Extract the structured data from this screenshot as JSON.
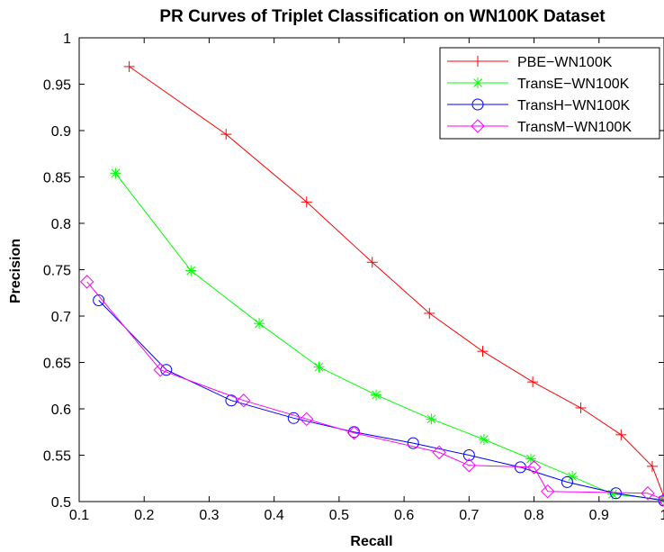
{
  "chart_data": {
    "type": "line",
    "title": "PR Curves of Triplet Classification on WN100K Dataset",
    "xlabel": "Recall",
    "ylabel": "Precision",
    "xlim": [
      0.1,
      1.0
    ],
    "ylim": [
      0.5,
      1.0
    ],
    "xticks": [
      "0.1",
      "0.2",
      "0.3",
      "0.4",
      "0.5",
      "0.6",
      "0.7",
      "0.8",
      "0.9",
      "1"
    ],
    "yticks": [
      "0.5",
      "0.55",
      "0.6",
      "0.65",
      "0.7",
      "0.75",
      "0.8",
      "0.85",
      "0.9",
      "0.95",
      "1"
    ],
    "grid": false,
    "legend_position": "top-right",
    "series": [
      {
        "name": "PBE−WN100K",
        "color": "#ff0000",
        "marker": "plus",
        "x": [
          0.177,
          0.326,
          0.45,
          0.551,
          0.639,
          0.721,
          0.798,
          0.872,
          0.934,
          0.982,
          1.0
        ],
        "y": [
          0.969,
          0.896,
          0.823,
          0.758,
          0.703,
          0.662,
          0.629,
          0.601,
          0.572,
          0.538,
          0.505
        ]
      },
      {
        "name": "TransE−WN100K",
        "color": "#00ff00",
        "marker": "asterisk",
        "x": [
          0.156,
          0.272,
          0.377,
          0.469,
          0.557,
          0.642,
          0.723,
          0.795,
          0.859,
          0.921,
          1.0
        ],
        "y": [
          0.854,
          0.749,
          0.692,
          0.645,
          0.615,
          0.589,
          0.567,
          0.546,
          0.527,
          0.508,
          0.502
        ]
      },
      {
        "name": "TransH−WN100K",
        "color": "#0000ff",
        "marker": "circle",
        "x": [
          0.13,
          0.234,
          0.334,
          0.43,
          0.523,
          0.614,
          0.7,
          0.779,
          0.851,
          0.926,
          1.0
        ],
        "y": [
          0.717,
          0.642,
          0.609,
          0.59,
          0.575,
          0.563,
          0.55,
          0.537,
          0.521,
          0.509,
          0.501
        ]
      },
      {
        "name": "TransM−WN100K",
        "color": "#ff00ff",
        "marker": "diamond",
        "x": [
          0.112,
          0.225,
          0.353,
          0.45,
          0.523,
          0.654,
          0.7,
          0.8,
          0.821,
          0.975,
          1.0
        ],
        "y": [
          0.737,
          0.642,
          0.609,
          0.589,
          0.574,
          0.553,
          0.539,
          0.537,
          0.511,
          0.509,
          0.502
        ]
      }
    ]
  }
}
